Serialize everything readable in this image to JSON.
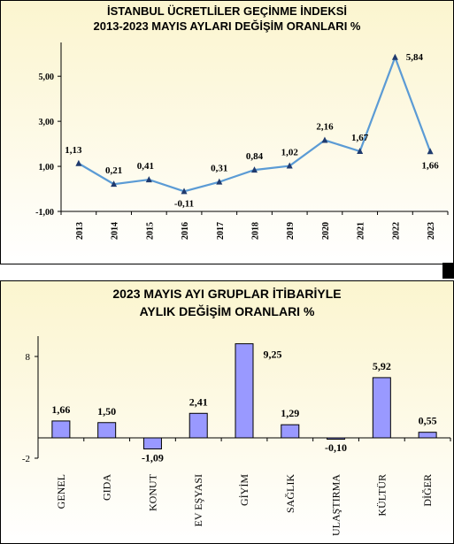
{
  "chart_data": [
    {
      "type": "line",
      "title": "İSTANBUL ÜCRETLİLER GEÇİNME İNDEKSİ",
      "subtitle": "2013-2023 MAYIS AYLARI DEĞİŞİM ORANLARI %",
      "x": [
        "2013",
        "2014",
        "2015",
        "2016",
        "2017",
        "2018",
        "2019",
        "2020",
        "2021",
        "2022",
        "2023"
      ],
      "values": [
        1.13,
        0.21,
        0.41,
        -0.11,
        0.31,
        0.84,
        1.02,
        2.16,
        1.67,
        5.84,
        1.66
      ],
      "data_labels": [
        "1,13",
        "0,21",
        "0,41",
        "-0,11",
        "0,31",
        "0,84",
        "1,02",
        "2,16",
        "1,67",
        "5,84",
        "1,66"
      ],
      "yticks": [
        "-1,00",
        "1,00",
        "3,00",
        "5,00"
      ],
      "ylim": [
        -1,
        6.5
      ],
      "color": "#5b9bd5",
      "grid": false
    },
    {
      "type": "bar",
      "title": "2023 MAYIS  AYI  GRUPLAR İTİBARİYLE",
      "subtitle": "AYLIK DEĞİŞİM  ORANLARI  %",
      "categories": [
        "GENEL",
        "GIDA",
        "KONUT",
        "EV EŞYASI",
        "GİYİM",
        "SAĞLIK",
        "ULAŞTIRMA",
        "KÜLTÜR",
        "DİĞER"
      ],
      "values": [
        1.66,
        1.5,
        -1.09,
        2.41,
        9.25,
        1.29,
        -0.1,
        5.92,
        0.55
      ],
      "data_labels": [
        "1,66",
        "1,50",
        "-1,09",
        "2,41",
        "9,25",
        "1,29",
        "-0,10",
        "5,92",
        "0,55"
      ],
      "yticks": [
        "-2",
        "8"
      ],
      "ylim": [
        -2,
        10
      ],
      "color": "#9999ff",
      "grid": false
    }
  ]
}
